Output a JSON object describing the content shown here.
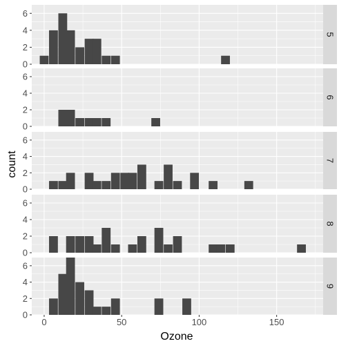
{
  "chart_data": {
    "type": "bar",
    "subtype": "histogram-faceted",
    "xlabel": "Ozone",
    "ylabel": "count",
    "x_ticks": [
      0,
      50,
      100,
      150
    ],
    "y_ticks": [
      0,
      2,
      4,
      6
    ],
    "xlim": [
      -8,
      180
    ],
    "ylim": [
      0,
      7
    ],
    "bin_width": 5.7,
    "bin_origin": -2.88,
    "facet_position": "right",
    "grid": true,
    "colors": {
      "bar": "#474747",
      "panel_bg": "#ebebeb",
      "strip_bg": "#d9d9d9",
      "grid": "#ffffff"
    },
    "facets": [
      {
        "label": "5",
        "bins": [
          {
            "x": 0,
            "count": 1
          },
          {
            "x": 6,
            "count": 4
          },
          {
            "x": 12,
            "count": 6
          },
          {
            "x": 17,
            "count": 4
          },
          {
            "x": 23,
            "count": 2
          },
          {
            "x": 29,
            "count": 3
          },
          {
            "x": 34,
            "count": 3
          },
          {
            "x": 40,
            "count": 1
          },
          {
            "x": 46,
            "count": 1
          },
          {
            "x": 117,
            "count": 1
          }
        ]
      },
      {
        "label": "6",
        "bins": [
          {
            "x": 12,
            "count": 2
          },
          {
            "x": 17,
            "count": 2
          },
          {
            "x": 23,
            "count": 1
          },
          {
            "x": 29,
            "count": 1
          },
          {
            "x": 34,
            "count": 1
          },
          {
            "x": 40,
            "count": 1
          },
          {
            "x": 72,
            "count": 1
          }
        ]
      },
      {
        "label": "7",
        "bins": [
          {
            "x": 6,
            "count": 1
          },
          {
            "x": 12,
            "count": 1
          },
          {
            "x": 17,
            "count": 2
          },
          {
            "x": 29,
            "count": 2
          },
          {
            "x": 34,
            "count": 1
          },
          {
            "x": 40,
            "count": 1
          },
          {
            "x": 46,
            "count": 2
          },
          {
            "x": 52,
            "count": 2
          },
          {
            "x": 57,
            "count": 2
          },
          {
            "x": 63,
            "count": 3
          },
          {
            "x": 74,
            "count": 1
          },
          {
            "x": 80,
            "count": 3
          },
          {
            "x": 86,
            "count": 1
          },
          {
            "x": 97,
            "count": 2
          },
          {
            "x": 109,
            "count": 1
          },
          {
            "x": 132,
            "count": 1
          }
        ]
      },
      {
        "label": "8",
        "bins": [
          {
            "x": 6,
            "count": 2
          },
          {
            "x": 17,
            "count": 2
          },
          {
            "x": 23,
            "count": 2
          },
          {
            "x": 29,
            "count": 2
          },
          {
            "x": 34,
            "count": 1
          },
          {
            "x": 40,
            "count": 3
          },
          {
            "x": 46,
            "count": 1
          },
          {
            "x": 57,
            "count": 1
          },
          {
            "x": 63,
            "count": 2
          },
          {
            "x": 74,
            "count": 3
          },
          {
            "x": 80,
            "count": 1
          },
          {
            "x": 86,
            "count": 2
          },
          {
            "x": 109,
            "count": 1
          },
          {
            "x": 114,
            "count": 1
          },
          {
            "x": 120,
            "count": 1
          },
          {
            "x": 166,
            "count": 1
          }
        ]
      },
      {
        "label": "9",
        "bins": [
          {
            "x": 6,
            "count": 2
          },
          {
            "x": 12,
            "count": 5
          },
          {
            "x": 17,
            "count": 7
          },
          {
            "x": 23,
            "count": 4
          },
          {
            "x": 29,
            "count": 3
          },
          {
            "x": 34,
            "count": 1
          },
          {
            "x": 40,
            "count": 1
          },
          {
            "x": 46,
            "count": 2
          },
          {
            "x": 74,
            "count": 2
          },
          {
            "x": 92,
            "count": 2
          }
        ]
      }
    ]
  }
}
